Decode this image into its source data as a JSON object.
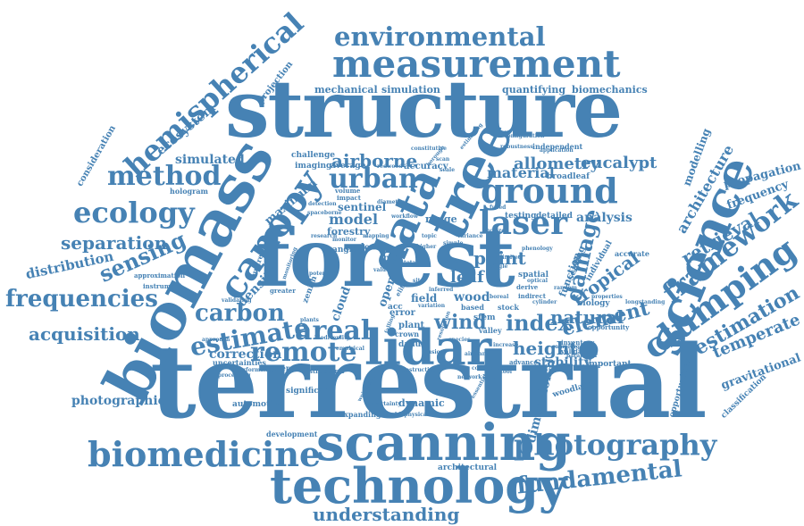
{
  "word_cloud": {
    "color": "#4682b4",
    "words": {
      "terrestrial": "terrestrial",
      "structure": "structure",
      "forest": "forest",
      "biomass": "biomass",
      "scanning": "scanning",
      "technology": "technology",
      "measurement": "measurement",
      "tree": "tree",
      "science": "science",
      "lidar": "lidar",
      "data": "data",
      "canopy": "canopy",
      "ground": "ground",
      "laser": "laser",
      "clumping": "clumping",
      "biomedicine": "biomedicine",
      "photography": "photography",
      "hemispherical": "hemispherical",
      "environmental": "environmental",
      "method": "method",
      "ecology": "ecology",
      "urban": "urban",
      "framework": "framework",
      "remote": "remote",
      "areal": "areal",
      "fundamental": "fundamental",
      "frequencies": "frequencies",
      "estimate": "estimate",
      "sensing": "sensing",
      "estimation": "estimation",
      "understanding": "understanding",
      "carbon": "carbon",
      "separation": "separation",
      "acquisition": "acquisition",
      "airborne": "airborne",
      "index": "index",
      "damage": "damage",
      "element": "element",
      "height": "height",
      "point": "point",
      "allometry": "allometry",
      "eucalypt": "eucalypt",
      "material": "material",
      "wind": "wind",
      "leaf": "leaf",
      "tropical": "tropical",
      "natural": "natural",
      "retrieval": "retrieval",
      "temperate": "temperate",
      "distribution": "distribution",
      "architecture": "architecture",
      "dimensional": "dimensional",
      "correction": "correction",
      "analysis": "analysis",
      "simulated": "simulated",
      "ecosystem": "ecosystem",
      "maximum": "maximum",
      "density": "density",
      "model": "model",
      "sentinel": "sentinel",
      "cloud": "cloud",
      "open": "open",
      "wood": "wood",
      "stability": "stability",
      "gravitational": "gravitational",
      "photographic": "photographic",
      "propagation": "propagation",
      "frequency": "frequency",
      "modelling": "modelling",
      "mechanical": "mechanical",
      "simulation": "simulation",
      "quantifying": "quantifying",
      "biomechanics": "biomechanics",
      "projection": "projection",
      "consideration": "consideration",
      "hologram": "hologram",
      "challenge": "challenge",
      "imaging": "imaging",
      "average": "average",
      "accuracy": "accuracy",
      "broadleaf": "broadleaf",
      "independent": "independent",
      "forestry": "forestry",
      "field": "field",
      "range": "range",
      "cycle": "cycle",
      "plot": "plot",
      "zenith": "zenith",
      "acc": "acc",
      "error": "error",
      "plant": "plant",
      "stem": "stem",
      "valley": "valley",
      "function": "function",
      "scaling": "scaling",
      "individual": "individual",
      "spatial": "spatial",
      "accurate": "accurate",
      "testing": "testing",
      "detailed": "detailed",
      "biology": "biology",
      "based": "based",
      "stock": "stock",
      "crown": "crown",
      "danum": "danum",
      "validation": "validation",
      "inventory": "inventory",
      "advance": "advance",
      "important": "important",
      "opportunity": "opportunity",
      "opportunities": "opportunities",
      "classification": "classification",
      "woodland": "woodland",
      "significant": "significant",
      "automotive": "automotive",
      "development": "development",
      "expanding": "expanding",
      "dynamic": "dynamic",
      "architectural": "architectural",
      "uncertainties": "uncertainties",
      "reference": "reference",
      "structural": "structural",
      "instrument": "instrument",
      "approximation": "approximation",
      "validating": "validating",
      "buttress": "buttress",
      "greater": "greater",
      "volume": "volume",
      "impact": "impact",
      "redwood": "redwood",
      "borough": "borough",
      "angle": "angle",
      "monitor": "monitor",
      "topic": "topic",
      "scan": "scan",
      "scale": "scale",
      "performance": "performance",
      "uncertainty": "uncertainty",
      "essential": "essential",
      "biophysical": "biophysical",
      "diameter": "diameter",
      "detection": "detection",
      "properties": "properties",
      "longstanding": "longstanding",
      "derive": "derive",
      "indirect": "indirect",
      "estimating": "estimating",
      "constitutive": "constitutive",
      "configuration": "configuration",
      "robustness": "robustness",
      "total": "total",
      "single": "single",
      "limited": "limited",
      "optical": "optical",
      "sampling": "sampling",
      "parameter": "parameter",
      "increase": "increase",
      "spaceborne": "spaceborne",
      "processing": "processing",
      "approach": "approach",
      "empirical": "empirical",
      "monitoring": "monitoring",
      "weighting": "weighting",
      "destructive": "destructive",
      "resolution": "resolution",
      "phenology": "phenology",
      "workflow": "workflow",
      "higher": "higher",
      "falling": "falling",
      "coniferous": "coniferous",
      "application": "application",
      "elite": "elite",
      "site": "site",
      "plants": "plants",
      "airplane": "airplane",
      "fused": "fused",
      "value": "value",
      "leaves": "leaves",
      "random": "random",
      "cylinder": "cylinder",
      "boreal": "boreal",
      "inferred": "inferred",
      "variation": "variation",
      "simple": "simple",
      "variance": "variance",
      "horizon": "horizon",
      "mapping": "mapping",
      "research": "research",
      "potential": "potential",
      "biodiversity": "biodiversity",
      "species": "species",
      "network": "network",
      "crop": "crop",
      "tool": "tool",
      "fusion": "fusion"
    }
  }
}
